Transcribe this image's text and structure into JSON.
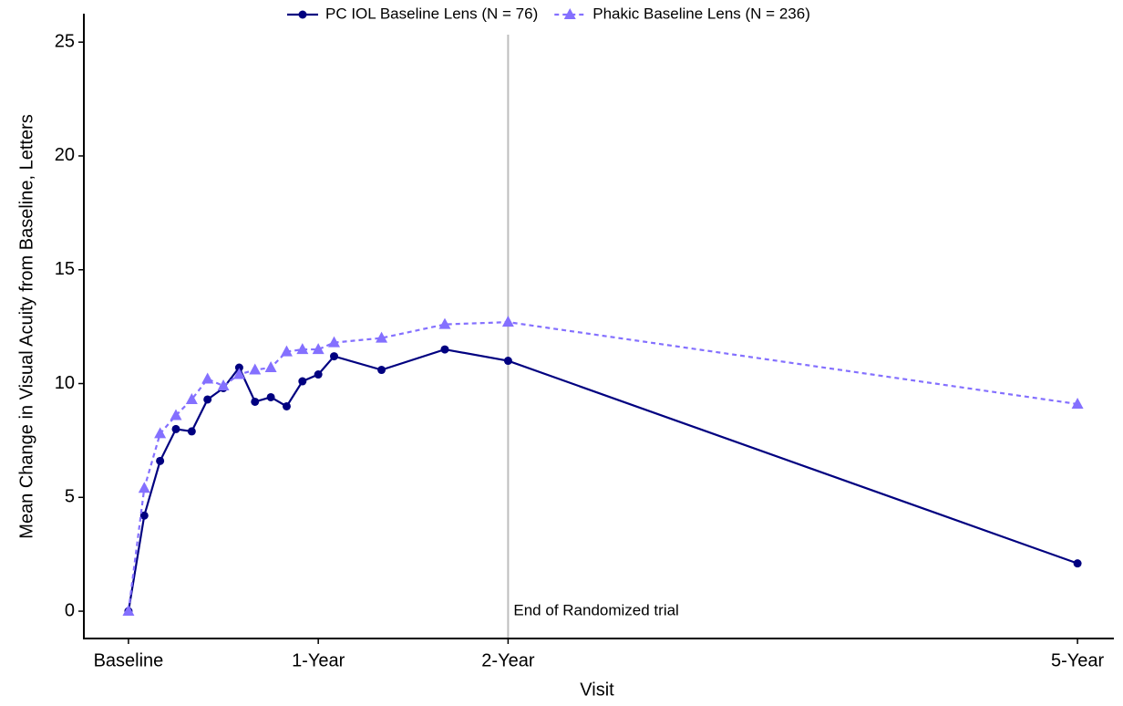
{
  "chart_data": {
    "type": "line",
    "x_label": "Visit",
    "y_label": "Mean Change in Visual Acuity from Baseline, Letters",
    "annotation": "End of Randomized trial",
    "annotation_x": 24,
    "x": [
      0,
      1,
      2,
      3,
      4,
      5,
      6,
      7,
      8,
      9,
      10,
      11,
      12,
      13,
      16,
      20,
      24,
      60
    ],
    "series": [
      {
        "name": "PC IOL Baseline Lens (N = 76)",
        "color": "#000080",
        "marker": "circle",
        "dash": false,
        "values": [
          0,
          4.2,
          6.6,
          8.0,
          7.9,
          9.3,
          9.8,
          10.7,
          9.2,
          9.4,
          9.0,
          10.1,
          10.4,
          11.2,
          10.6,
          11.5,
          11.0,
          2.1
        ]
      },
      {
        "name": "Phakic Baseline Lens (N = 236)",
        "color": "#8470ff",
        "marker": "triangle",
        "dash": true,
        "values": [
          0,
          5.4,
          7.8,
          8.6,
          9.3,
          10.2,
          9.9,
          10.4,
          10.6,
          10.7,
          11.4,
          11.5,
          11.5,
          11.8,
          12.0,
          12.6,
          12.7,
          9.1
        ]
      }
    ],
    "xlim": [
      -2.82,
      62.3
    ],
    "xticks": [
      {
        "value": 0,
        "label": "Baseline"
      },
      {
        "value": 12,
        "label": "1-Year"
      },
      {
        "value": 24,
        "label": "2-Year"
      },
      {
        "value": 60,
        "label": "5-Year"
      }
    ],
    "ylim": [
      -1.2,
      26.25
    ],
    "yticks": [
      0,
      5,
      10,
      15,
      20,
      25
    ],
    "legend": "top"
  }
}
